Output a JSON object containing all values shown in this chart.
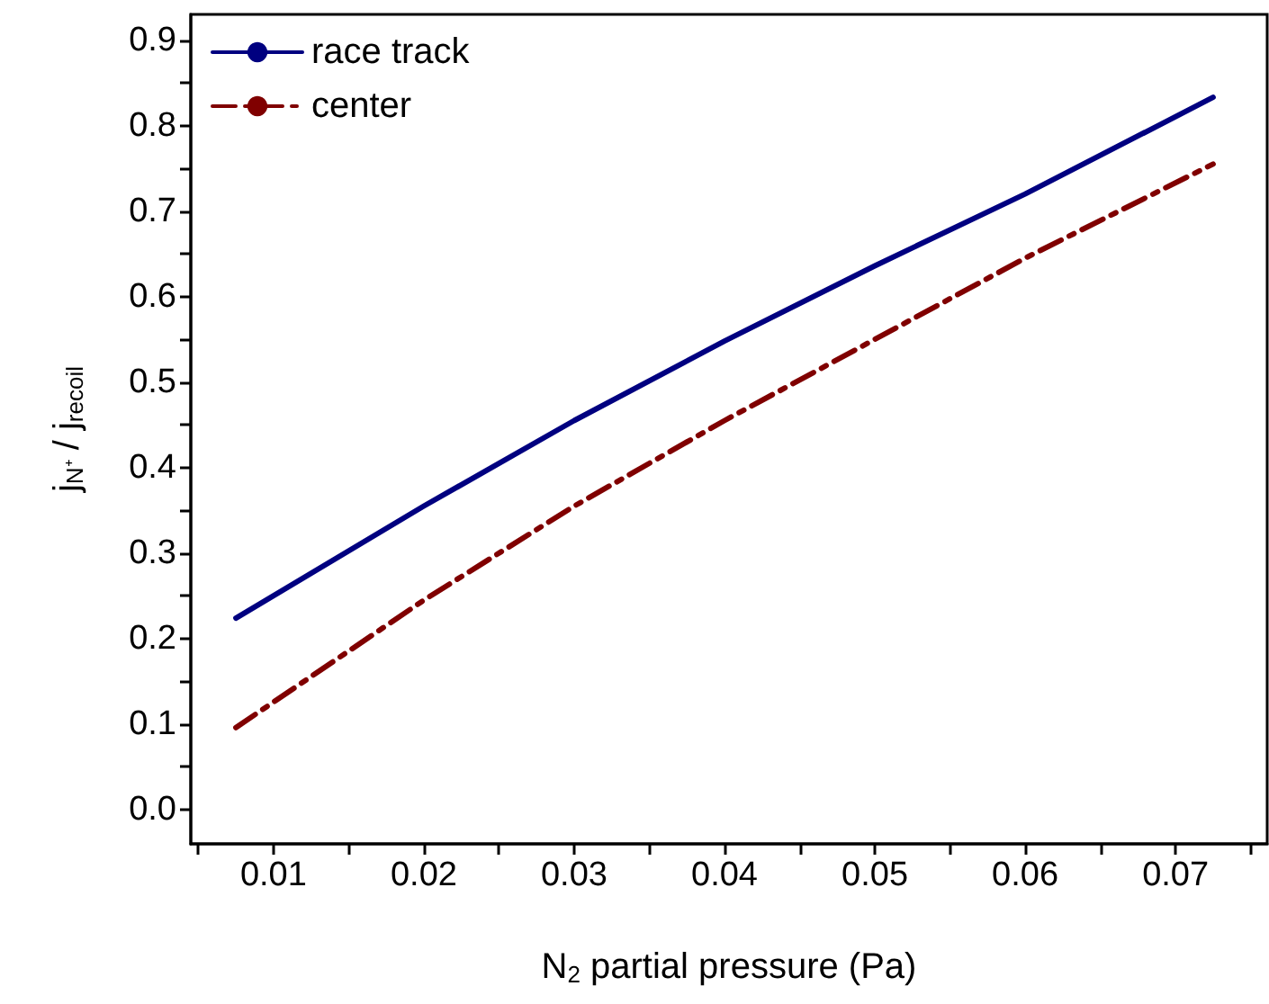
{
  "chart_data": {
    "type": "line",
    "xlabel": "N$_{2}$ partial pressure (Pa)",
    "ylabel": "j$_{N⁺}$ / j$_{recoil}$",
    "x": [
      0.0075,
      0.02,
      0.03,
      0.04,
      0.05,
      0.06,
      0.0725
    ],
    "series": [
      {
        "name": "race track",
        "color": "#000080",
        "line_style": "solid",
        "values": [
          0.224,
          0.355,
          0.455,
          0.548,
          0.636,
          0.72,
          0.833
        ]
      },
      {
        "name": "center",
        "color": "#800000",
        "line_style": "dashed",
        "values": [
          0.096,
          0.245,
          0.355,
          0.455,
          0.55,
          0.645,
          0.755
        ]
      }
    ],
    "xlim": [
      0.0045,
      0.0761
    ],
    "xticks": [
      {
        "value": 0.005,
        "label": null
      },
      0.01,
      {
        "value": 0.015,
        "label": null
      },
      0.02,
      {
        "value": 0.025,
        "label": null
      },
      0.03,
      {
        "value": 0.035,
        "label": null
      },
      0.04,
      {
        "value": 0.045,
        "label": null
      },
      0.05,
      {
        "value": 0.055,
        "label": null
      },
      0.06,
      {
        "value": 0.065,
        "label": null
      },
      0.07,
      {
        "value": 0.075,
        "label": null
      }
    ],
    "ylim": [
      -0.04,
      0.93
    ],
    "yticks": [
      {
        "value": 0,
        "label": "0.0"
      },
      {
        "value": 0.05,
        "label": null
      },
      0.1,
      {
        "value": 0.15,
        "label": null
      },
      0.2,
      {
        "value": 0.25,
        "label": null
      },
      0.3,
      {
        "value": 0.35,
        "label": null
      },
      0.4,
      {
        "value": 0.45,
        "label": null
      },
      0.5,
      {
        "value": 0.55,
        "label": null
      },
      0.6,
      {
        "value": 0.65,
        "label": null
      },
      0.7,
      {
        "value": 0.75,
        "label": null
      },
      0.8,
      {
        "value": 0.85,
        "label": null
      },
      0.9
    ],
    "legend": "top left",
    "grid": false,
    "marker": "none"
  }
}
